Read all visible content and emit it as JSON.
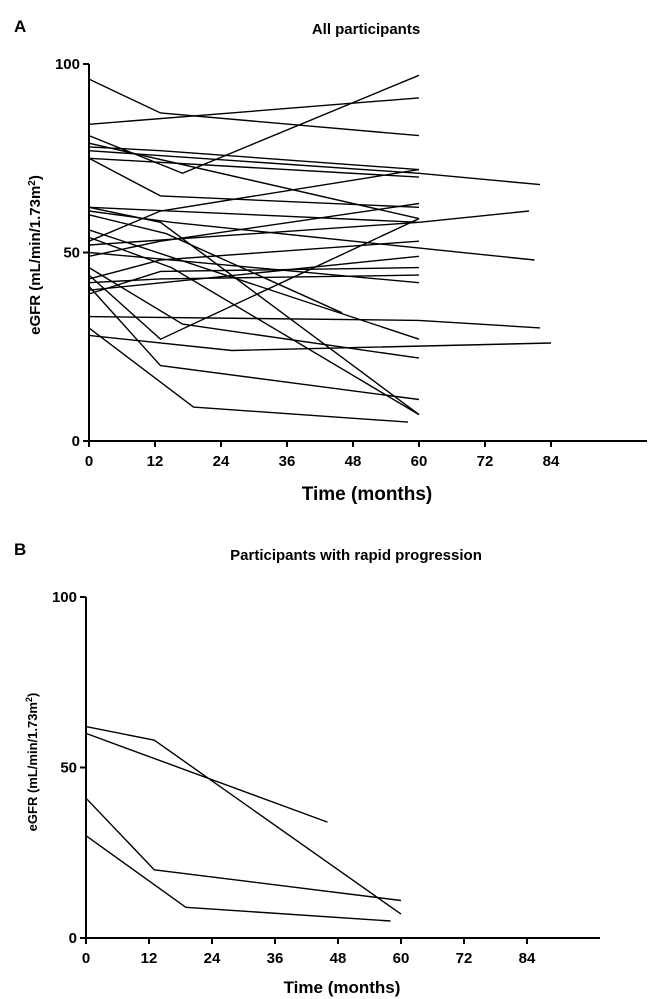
{
  "chart_data": [
    {
      "panel": "A",
      "type": "line",
      "title": "All participants",
      "xlabel": "Time (months)",
      "ylabel_main": "eGFR (mL/min/1.73m",
      "ylabel_sup": "2",
      "ylabel_close": ")",
      "xlim": [
        0,
        90
      ],
      "ylim": [
        0,
        100
      ],
      "xticks": [
        0,
        12,
        24,
        36,
        48,
        60,
        72,
        84
      ],
      "yticks": [
        0,
        50,
        100
      ],
      "grid": false,
      "series": [
        {
          "x": [
            0,
            13,
            60
          ],
          "y": [
            96,
            87,
            81
          ]
        },
        {
          "x": [
            0,
            60
          ],
          "y": [
            84,
            91
          ]
        },
        {
          "x": [
            0,
            17,
            60
          ],
          "y": [
            81,
            71,
            97
          ]
        },
        {
          "x": [
            0,
            60
          ],
          "y": [
            79,
            59
          ]
        },
        {
          "x": [
            0,
            13,
            60
          ],
          "y": [
            78,
            77,
            72
          ]
        },
        {
          "x": [
            0,
            60
          ],
          "y": [
            75,
            70
          ]
        },
        {
          "x": [
            0,
            60,
            82
          ],
          "y": [
            77,
            71,
            68
          ]
        },
        {
          "x": [
            0,
            13,
            60
          ],
          "y": [
            75,
            65,
            62
          ]
        },
        {
          "x": [
            0,
            15,
            81
          ],
          "y": [
            61,
            58,
            48
          ]
        },
        {
          "x": [
            0,
            60
          ],
          "y": [
            62,
            58
          ]
        },
        {
          "x": [
            0,
            13,
            60
          ],
          "y": [
            53,
            61,
            72
          ]
        },
        {
          "x": [
            0,
            60,
            80
          ],
          "y": [
            52,
            58,
            61
          ]
        },
        {
          "x": [
            0,
            13,
            60
          ],
          "y": [
            49,
            53,
            63
          ]
        },
        {
          "x": [
            0,
            13,
            60
          ],
          "y": [
            43,
            48,
            53
          ]
        },
        {
          "x": [
            0,
            60
          ],
          "y": [
            40,
            49
          ]
        },
        {
          "x": [
            0,
            13,
            60
          ],
          "y": [
            39,
            45,
            46
          ]
        },
        {
          "x": [
            0,
            13,
            60
          ],
          "y": [
            42,
            43,
            44
          ]
        },
        {
          "x": [
            0,
            13,
            60
          ],
          "y": [
            44,
            27,
            59
          ]
        },
        {
          "x": [
            0,
            60
          ],
          "y": [
            50,
            42
          ]
        },
        {
          "x": [
            0,
            60
          ],
          "y": [
            56,
            27
          ]
        },
        {
          "x": [
            0,
            15,
            60
          ],
          "y": [
            54,
            46,
            7
          ]
        },
        {
          "x": [
            0,
            17,
            60
          ],
          "y": [
            46,
            31,
            22
          ]
        },
        {
          "x": [
            0,
            14,
            46
          ],
          "y": [
            60,
            55,
            34
          ]
        },
        {
          "x": [
            0,
            13,
            60
          ],
          "y": [
            62,
            58,
            7
          ]
        },
        {
          "x": [
            0,
            60,
            82
          ],
          "y": [
            33,
            32,
            30
          ]
        },
        {
          "x": [
            0,
            26,
            84
          ],
          "y": [
            28,
            24,
            26
          ]
        },
        {
          "x": [
            0,
            13,
            60
          ],
          "y": [
            41,
            20,
            11
          ]
        },
        {
          "x": [
            0,
            19,
            58
          ],
          "y": [
            30,
            9,
            5
          ]
        }
      ]
    },
    {
      "panel": "B",
      "type": "line",
      "title": "Participants with rapid progression",
      "xlabel": "Time (months)",
      "ylabel_main": "eGFR (mL/min/1.73m",
      "ylabel_sup": "2",
      "ylabel_close": ")",
      "xlim": [
        0,
        90
      ],
      "ylim": [
        0,
        100
      ],
      "xticks": [
        0,
        12,
        24,
        36,
        48,
        60,
        72,
        84
      ],
      "yticks": [
        0,
        50,
        100
      ],
      "grid": false,
      "series": [
        {
          "x": [
            0,
            46
          ],
          "y": [
            60,
            34
          ]
        },
        {
          "x": [
            0,
            13,
            60
          ],
          "y": [
            62,
            58,
            7
          ]
        },
        {
          "x": [
            0,
            13,
            60
          ],
          "y": [
            41,
            20,
            11
          ]
        },
        {
          "x": [
            0,
            19,
            58
          ],
          "y": [
            30,
            9,
            5
          ]
        }
      ]
    }
  ]
}
